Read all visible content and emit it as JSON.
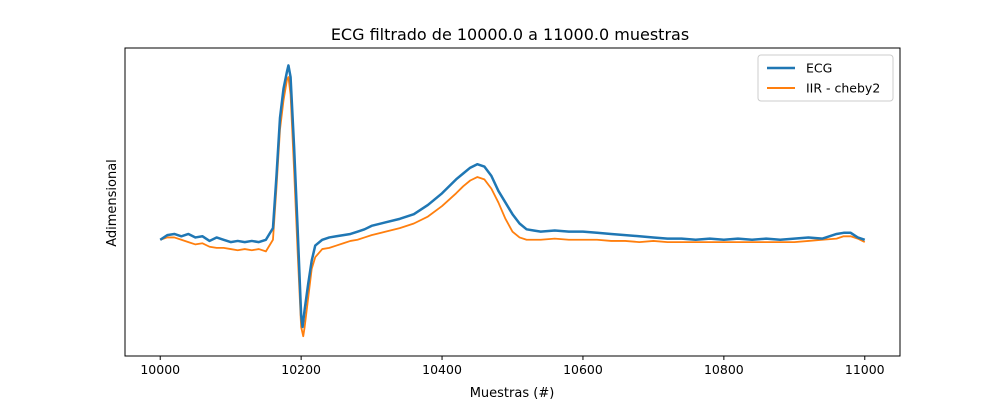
{
  "chart_data": {
    "type": "line",
    "title": "ECG filtrado de 10000.0 a 11000.0 muestras",
    "xlabel": "Muestras (#)",
    "ylabel": "Adimensional",
    "xlim": [
      9950,
      11050
    ],
    "ylim": [
      -1.0,
      1.65
    ],
    "xticks": [
      10000,
      10200,
      10400,
      10600,
      10800,
      11000
    ],
    "yticks_visible": false,
    "grid": false,
    "legend_position": "top-right",
    "series": [
      {
        "name": "ECG",
        "color": "#1f77b4",
        "x": [
          10000,
          10010,
          10020,
          10030,
          10040,
          10050,
          10060,
          10070,
          10080,
          10090,
          10100,
          10110,
          10120,
          10130,
          10140,
          10150,
          10160,
          10165,
          10170,
          10175,
          10180,
          10182,
          10185,
          10190,
          10195,
          10200,
          10202,
          10205,
          10210,
          10215,
          10220,
          10230,
          10240,
          10250,
          10260,
          10270,
          10280,
          10290,
          10300,
          10320,
          10340,
          10360,
          10380,
          10400,
          10420,
          10430,
          10440,
          10450,
          10460,
          10470,
          10480,
          10490,
          10500,
          10510,
          10520,
          10530,
          10540,
          10560,
          10580,
          10600,
          10620,
          10640,
          10660,
          10680,
          10700,
          10720,
          10740,
          10760,
          10780,
          10800,
          10820,
          10840,
          10860,
          10880,
          10900,
          10920,
          10940,
          10960,
          10970,
          10980,
          10990,
          11000
        ],
        "y": [
          0.0,
          0.04,
          0.05,
          0.03,
          0.05,
          0.02,
          0.03,
          -0.01,
          0.02,
          0.0,
          -0.02,
          -0.01,
          -0.02,
          -0.01,
          -0.02,
          0.0,
          0.1,
          0.55,
          1.05,
          1.3,
          1.45,
          1.5,
          1.4,
          0.8,
          0.1,
          -0.65,
          -0.75,
          -0.6,
          -0.38,
          -0.18,
          -0.05,
          0.0,
          0.02,
          0.03,
          0.04,
          0.05,
          0.07,
          0.09,
          0.12,
          0.15,
          0.18,
          0.22,
          0.3,
          0.4,
          0.52,
          0.57,
          0.62,
          0.65,
          0.63,
          0.55,
          0.42,
          0.32,
          0.22,
          0.14,
          0.09,
          0.08,
          0.07,
          0.08,
          0.07,
          0.07,
          0.06,
          0.05,
          0.04,
          0.03,
          0.02,
          0.01,
          0.01,
          0.0,
          0.01,
          0.0,
          0.01,
          0.0,
          0.01,
          0.0,
          0.01,
          0.02,
          0.01,
          0.05,
          0.06,
          0.06,
          0.02,
          0.0
        ]
      },
      {
        "name": "IIR - cheby2",
        "color": "#ff7f0e",
        "x": [
          10000,
          10010,
          10020,
          10030,
          10040,
          10050,
          10060,
          10070,
          10080,
          10090,
          10100,
          10110,
          10120,
          10130,
          10140,
          10150,
          10160,
          10165,
          10170,
          10175,
          10180,
          10182,
          10185,
          10190,
          10195,
          10200,
          10203,
          10205,
          10210,
          10215,
          10220,
          10230,
          10240,
          10250,
          10260,
          10270,
          10280,
          10290,
          10300,
          10320,
          10340,
          10360,
          10380,
          10400,
          10420,
          10430,
          10440,
          10450,
          10460,
          10470,
          10480,
          10490,
          10500,
          10510,
          10520,
          10530,
          10540,
          10560,
          10580,
          10600,
          10620,
          10640,
          10660,
          10680,
          10700,
          10720,
          10740,
          10760,
          10780,
          10800,
          10820,
          10840,
          10860,
          10880,
          10900,
          10920,
          10940,
          10960,
          10970,
          10980,
          10990,
          11000
        ],
        "y": [
          0.0,
          0.02,
          0.02,
          0.0,
          -0.02,
          -0.04,
          -0.03,
          -0.06,
          -0.07,
          -0.07,
          -0.08,
          -0.09,
          -0.08,
          -0.09,
          -0.08,
          -0.1,
          0.0,
          0.45,
          0.95,
          1.2,
          1.38,
          1.4,
          1.25,
          0.6,
          -0.1,
          -0.75,
          -0.83,
          -0.75,
          -0.5,
          -0.25,
          -0.15,
          -0.08,
          -0.07,
          -0.05,
          -0.03,
          -0.01,
          0.0,
          0.02,
          0.04,
          0.07,
          0.1,
          0.14,
          0.2,
          0.29,
          0.4,
          0.46,
          0.51,
          0.54,
          0.52,
          0.44,
          0.32,
          0.18,
          0.07,
          0.02,
          0.0,
          0.0,
          0.0,
          0.01,
          0.0,
          0.0,
          0.0,
          -0.01,
          -0.01,
          -0.02,
          -0.01,
          -0.02,
          -0.02,
          -0.02,
          -0.02,
          -0.02,
          -0.02,
          -0.02,
          -0.02,
          -0.02,
          -0.02,
          -0.01,
          0.0,
          0.01,
          0.03,
          0.03,
          0.01,
          -0.02
        ]
      }
    ]
  }
}
